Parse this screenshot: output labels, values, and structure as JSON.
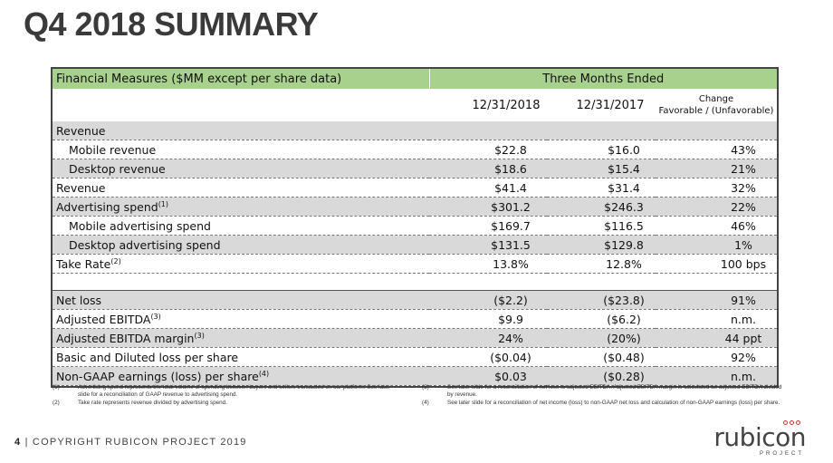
{
  "title": "Q4 2018 SUMMARY",
  "table": {
    "header_left": "Financial Measures ($MM except per share data)",
    "header_right": "Three Months Ended",
    "col1": "12/31/2018",
    "col2": "12/31/2017",
    "col3_line1": "Change",
    "col3_line2": "Favorable / (Unfavorable)",
    "rows": [
      {
        "label": "Revenue",
        "sup": "",
        "v1": "",
        "v2": "",
        "chg": ""
      },
      {
        "label": "Mobile revenue",
        "sup": "",
        "v1": "$22.8",
        "v2": "$16.0",
        "chg": "43%"
      },
      {
        "label": "Desktop revenue",
        "sup": "",
        "v1": "$18.6",
        "v2": "$15.4",
        "chg": "21%"
      },
      {
        "label": "Revenue",
        "sup": "",
        "v1": "$41.4",
        "v2": "$31.4",
        "chg": "32%"
      },
      {
        "label": "Advertising spend",
        "sup": "(1)",
        "v1": "$301.2",
        "v2": "$246.3",
        "chg": "22%"
      },
      {
        "label": "Mobile advertising spend",
        "sup": "",
        "v1": "$169.7",
        "v2": "$116.5",
        "chg": "46%"
      },
      {
        "label": "Desktop advertising spend",
        "sup": "",
        "v1": "$131.5",
        "v2": "$129.8",
        "chg": "1%"
      },
      {
        "label": "Take Rate",
        "sup": "(2)",
        "v1": "13.8%",
        "v2": "12.8%",
        "chg": "100 bps"
      },
      {
        "label": "Net loss",
        "sup": "",
        "v1": "($2.2)",
        "v2": "($23.8)",
        "chg": "91%"
      },
      {
        "label": "Adjusted EBITDA",
        "sup": "(3)",
        "v1": "$9.9",
        "v2": "($6.2)",
        "chg": "n.m."
      },
      {
        "label": "Adjusted EBITDA margin",
        "sup": "(3)",
        "v1": "24%",
        "v2": "(20%)",
        "chg": "44 ppt"
      },
      {
        "label": "Basic and Diluted loss per share",
        "sup": "",
        "v1": "($0.04)",
        "v2": "($0.48)",
        "chg": "92%"
      },
      {
        "label": "Non-GAAP earnings (loss) per share",
        "sup": "(4)",
        "v1": "$0.03",
        "v2": "($0.28)",
        "chg": "n.m."
      }
    ]
  },
  "notes": {
    "left": [
      {
        "k": "(1)",
        "t": "Advertising spend represents the total volume of spending between buyers and sellers transacted on our platform. See later slide for a reconciliation of GAAP revenue to advertising spend."
      },
      {
        "k": "(2)",
        "t": "Take rate represents revenue divided by advertising spend."
      }
    ],
    "right": [
      {
        "k": "(3)",
        "t": "See later slide for a reconciliation of net loss to adjusted EBITDA. Adjusted EBITDA margin is calculated as adjusted EBITDA divided by revenue."
      },
      {
        "k": "(4)",
        "t": "See later slide for a reconciliation of net income (loss) to non-GAAP net loss and calculation of non-GAAP earnings (loss) per share."
      }
    ]
  },
  "footer": {
    "page": "4",
    "sep": "|",
    "text": "COPYRIGHT RUBICON PROJECT 2019"
  },
  "logo": {
    "word": "rubicon",
    "sub": "PROJECT"
  },
  "colors": {
    "header_green": "#a9d18e",
    "row_shade": "#d9d9d9",
    "logo_accent": "#c0392b"
  }
}
